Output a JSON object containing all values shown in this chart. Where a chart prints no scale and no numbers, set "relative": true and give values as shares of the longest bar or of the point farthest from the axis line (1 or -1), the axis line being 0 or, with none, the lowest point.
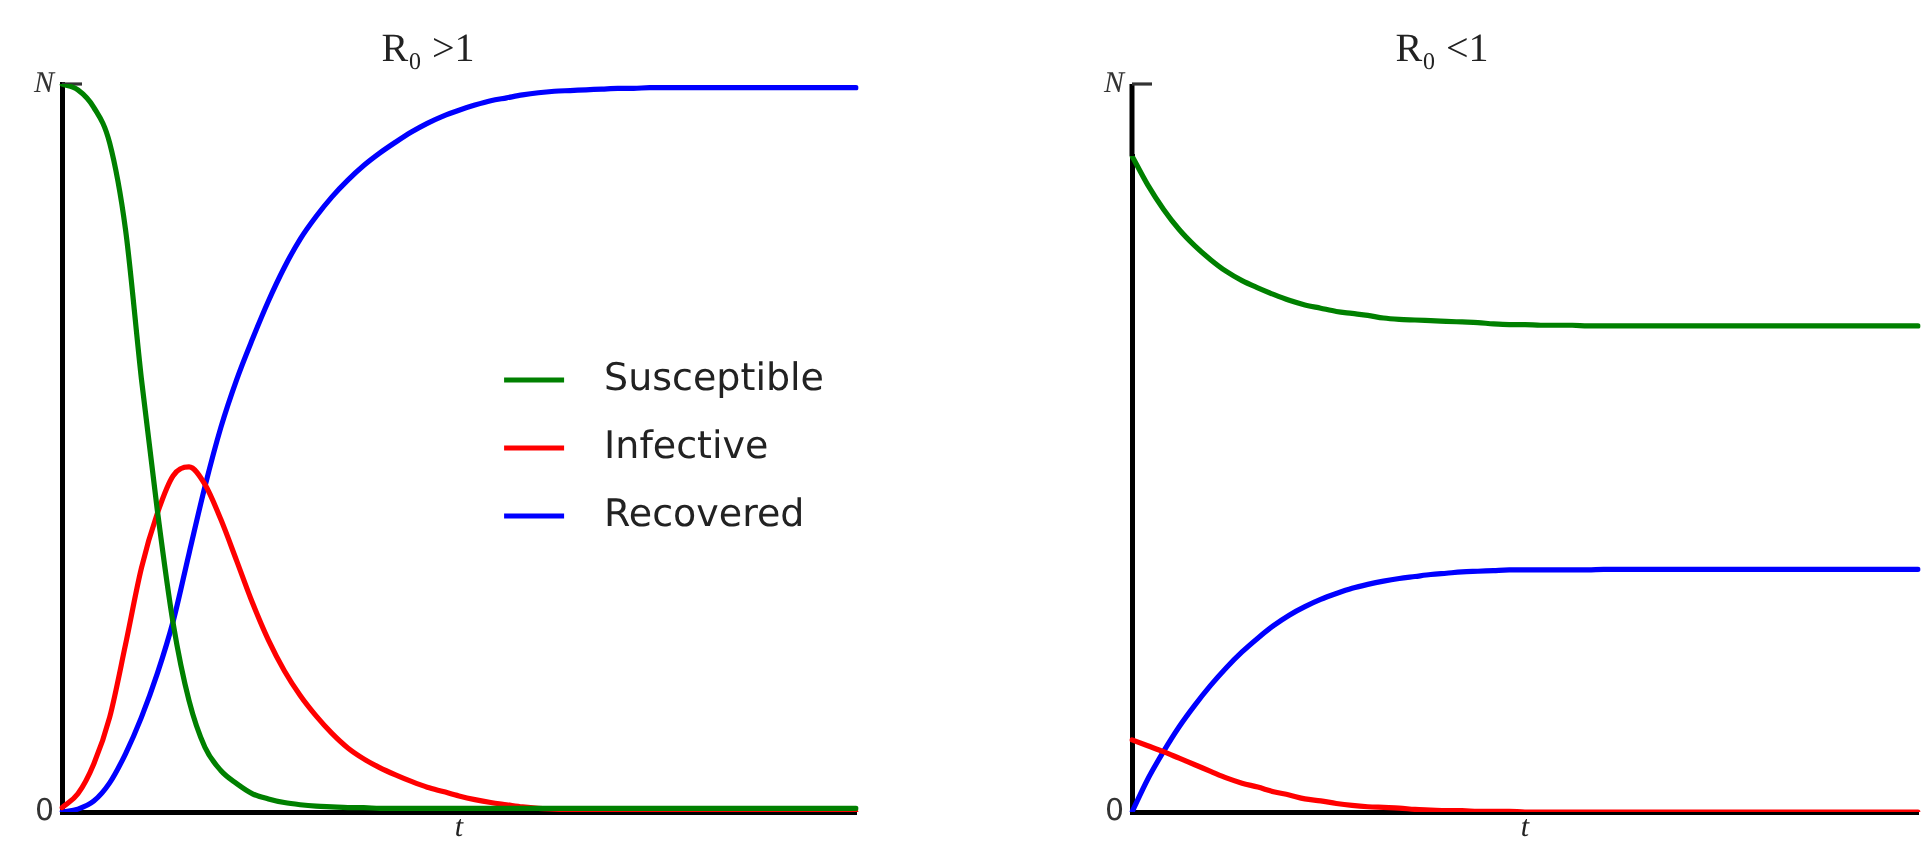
{
  "chart_data": [
    {
      "type": "line",
      "title": "R₀ >1",
      "xlabel": "t",
      "relative": true,
      "legend": "right",
      "marker": "none",
      "annotations": [
        "N",
        "0"
      ],
      "categories": [
        null,
        null,
        null,
        null,
        null,
        null,
        null,
        null,
        null,
        null,
        null,
        null,
        null,
        null,
        null,
        null,
        null,
        null,
        null,
        null,
        null,
        null,
        null,
        null,
        null,
        null,
        null,
        null,
        null,
        null,
        null,
        null,
        null,
        null,
        null,
        null,
        null,
        null,
        null,
        null,
        null,
        null,
        null,
        null,
        null,
        null,
        null,
        null,
        null,
        null,
        null
      ],
      "series": [
        {
          "name": "Susceptible",
          "color": "#008000",
          "values": [
            1.0,
            0.992,
            0.968,
            0.919,
            0.8,
            0.595,
            0.415,
            0.259,
            0.153,
            0.089,
            0.057,
            0.039,
            0.025,
            0.018,
            0.013,
            0.01,
            0.008,
            0.007,
            0.006,
            0.006,
            0.005,
            0.005,
            0.005,
            0.005,
            0.005,
            0.005,
            0.005,
            0.005,
            0.005,
            0.005,
            0.005,
            0.005,
            0.005,
            0.005,
            0.005,
            0.005,
            0.005,
            0.005,
            0.005,
            0.005,
            0.005,
            0.005,
            0.005,
            0.005,
            0.005,
            0.005,
            0.005,
            0.005,
            0.005,
            0.005,
            0.005
          ]
        },
        {
          "name": "Infective",
          "color": "#ff0000",
          "values": [
            0.006,
            0.025,
            0.066,
            0.13,
            0.23,
            0.335,
            0.41,
            0.462,
            0.474,
            0.45,
            0.402,
            0.345,
            0.287,
            0.236,
            0.194,
            0.16,
            0.132,
            0.108,
            0.088,
            0.073,
            0.061,
            0.051,
            0.042,
            0.034,
            0.028,
            0.022,
            0.017,
            0.013,
            0.01,
            0.007,
            0.005,
            0.004,
            0.003,
            0.003,
            0.002,
            0.002,
            0.002,
            0.001,
            0.001,
            0.001,
            0.001,
            0.001,
            0.001,
            0,
            0,
            0,
            0,
            0,
            0,
            0,
            0
          ]
        },
        {
          "name": "Recovered",
          "color": "#0000ff",
          "values": [
            0,
            0.004,
            0.015,
            0.04,
            0.08,
            0.13,
            0.19,
            0.262,
            0.355,
            0.447,
            0.528,
            0.594,
            0.65,
            0.702,
            0.748,
            0.787,
            0.818,
            0.845,
            0.868,
            0.888,
            0.905,
            0.92,
            0.934,
            0.946,
            0.956,
            0.964,
            0.971,
            0.977,
            0.981,
            0.985,
            0.988,
            0.99,
            0.991,
            0.992,
            0.993,
            0.994,
            0.994,
            0.995,
            0.995,
            0.995,
            0.995,
            0.995,
            0.995,
            0.995,
            0.995,
            0.995,
            0.995,
            0.995,
            0.995,
            0.995,
            0.995
          ]
        }
      ]
    },
    {
      "type": "line",
      "title": "R₀ <1",
      "xlabel": "t",
      "relative": true,
      "marker": "none",
      "annotations": [
        "N",
        "0"
      ],
      "categories": [
        null,
        null,
        null,
        null,
        null,
        null,
        null,
        null,
        null,
        null,
        null,
        null,
        null,
        null,
        null,
        null,
        null,
        null,
        null,
        null,
        null,
        null,
        null,
        null,
        null,
        null,
        null,
        null,
        null,
        null,
        null,
        null,
        null,
        null,
        null,
        null,
        null,
        null,
        null,
        null,
        null,
        null,
        null,
        null,
        null,
        null,
        null,
        null,
        null,
        null,
        null
      ],
      "series": [
        {
          "color": "#008000",
          "values": [
            1.0,
            0.956,
            0.919,
            0.888,
            0.863,
            0.842,
            0.824,
            0.81,
            0.799,
            0.789,
            0.78,
            0.773,
            0.768,
            0.763,
            0.76,
            0.757,
            0.753,
            0.751,
            0.75,
            0.749,
            0.748,
            0.747,
            0.746,
            0.744,
            0.743,
            0.743,
            0.742,
            0.742,
            0.742,
            0.741,
            0.741,
            0.741,
            0.741,
            0.741,
            0.741,
            0.741,
            0.741,
            0.741,
            0.741,
            0.741,
            0.741,
            0.741,
            0.741,
            0.741,
            0.741,
            0.741,
            0.741,
            0.741,
            0.741,
            0.741,
            0.741
          ]
        },
        {
          "color": "#ff0000",
          "values": [
            0.11,
            0.101,
            0.092,
            0.082,
            0.072,
            0.062,
            0.052,
            0.044,
            0.038,
            0.031,
            0.026,
            0.02,
            0.017,
            0.013,
            0.01,
            0.008,
            0.007,
            0.006,
            0.004,
            0.003,
            0.002,
            0.002,
            0.001,
            0.001,
            0.001,
            0,
            0,
            0,
            0,
            0,
            0,
            0,
            0,
            0,
            0,
            0,
            0,
            0,
            0,
            0,
            0,
            0,
            0,
            0,
            0,
            0,
            0,
            0,
            0,
            0,
            0
          ]
        },
        {
          "color": "#0000ff",
          "values": [
            0,
            0.05,
            0.092,
            0.13,
            0.163,
            0.193,
            0.22,
            0.244,
            0.265,
            0.284,
            0.3,
            0.313,
            0.324,
            0.333,
            0.341,
            0.347,
            0.352,
            0.356,
            0.359,
            0.362,
            0.364,
            0.366,
            0.367,
            0.368,
            0.369,
            0.369,
            0.369,
            0.369,
            0.369,
            0.369,
            0.37,
            0.37,
            0.37,
            0.37,
            0.37,
            0.37,
            0.37,
            0.37,
            0.37,
            0.37,
            0.37,
            0.37,
            0.37,
            0.37,
            0.37,
            0.37,
            0.37,
            0.37,
            0.37,
            0.37,
            0.37
          ]
        }
      ]
    }
  ]
}
